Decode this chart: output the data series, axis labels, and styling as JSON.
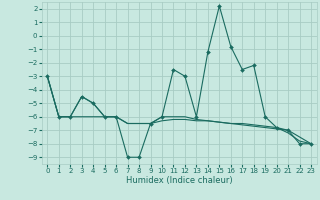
{
  "title": "",
  "xlabel": "Humidex (Indice chaleur)",
  "ylabel": "",
  "background_color": "#c8e8e0",
  "grid_color": "#a8ccc4",
  "line_color": "#1a6b60",
  "ylim": [
    -9.5,
    2.5
  ],
  "xlim": [
    -0.5,
    23.5
  ],
  "yticks": [
    2,
    1,
    0,
    -1,
    -2,
    -3,
    -4,
    -5,
    -6,
    -7,
    -8,
    -9
  ],
  "xticks": [
    0,
    1,
    2,
    3,
    4,
    5,
    6,
    7,
    8,
    9,
    10,
    11,
    12,
    13,
    14,
    15,
    16,
    17,
    18,
    19,
    20,
    21,
    22,
    23
  ],
  "lines": [
    {
      "x": [
        0,
        1,
        2,
        3,
        4,
        5,
        6,
        7,
        8,
        9,
        10,
        11,
        12,
        13,
        14,
        15,
        16,
        17,
        18,
        19,
        20,
        21,
        22,
        23
      ],
      "y": [
        -3,
        -6,
        -6,
        -4.5,
        -5,
        -6,
        -6,
        -9,
        -9,
        -6.5,
        -6,
        -2.5,
        -3,
        -6,
        -1.2,
        2.2,
        -0.8,
        -2.5,
        -2.2,
        -6,
        -6.8,
        -7,
        -8,
        -8
      ],
      "marker": true
    },
    {
      "x": [
        0,
        1,
        2,
        3,
        4,
        5,
        6,
        7,
        8,
        9,
        10,
        11,
        12,
        13,
        14,
        15,
        16,
        17,
        18,
        19,
        20,
        21,
        22,
        23
      ],
      "y": [
        -3,
        -6,
        -6,
        -4.5,
        -5,
        -6,
        -6,
        -6.5,
        -6.5,
        -6.5,
        -6.0,
        -6.0,
        -6.0,
        -6.2,
        -6.3,
        -6.4,
        -6.5,
        -6.6,
        -6.7,
        -6.8,
        -6.9,
        -7.0,
        -7.5,
        -8
      ],
      "marker": false
    },
    {
      "x": [
        0,
        1,
        2,
        3,
        4,
        5,
        6,
        7,
        8,
        9,
        10,
        11,
        12,
        13,
        14,
        15,
        16,
        17,
        18,
        19,
        20,
        21,
        22,
        23
      ],
      "y": [
        -3,
        -6,
        -6,
        -6.0,
        -6.0,
        -6.0,
        -6.0,
        -6.5,
        -6.5,
        -6.5,
        -6.3,
        -6.2,
        -6.2,
        -6.3,
        -6.3,
        -6.4,
        -6.5,
        -6.5,
        -6.6,
        -6.7,
        -6.8,
        -7.2,
        -7.8,
        -8
      ],
      "marker": false
    }
  ],
  "xlabel_fontsize": 6,
  "tick_fontsize": 5,
  "linewidth": 0.8,
  "markersize": 2.0
}
